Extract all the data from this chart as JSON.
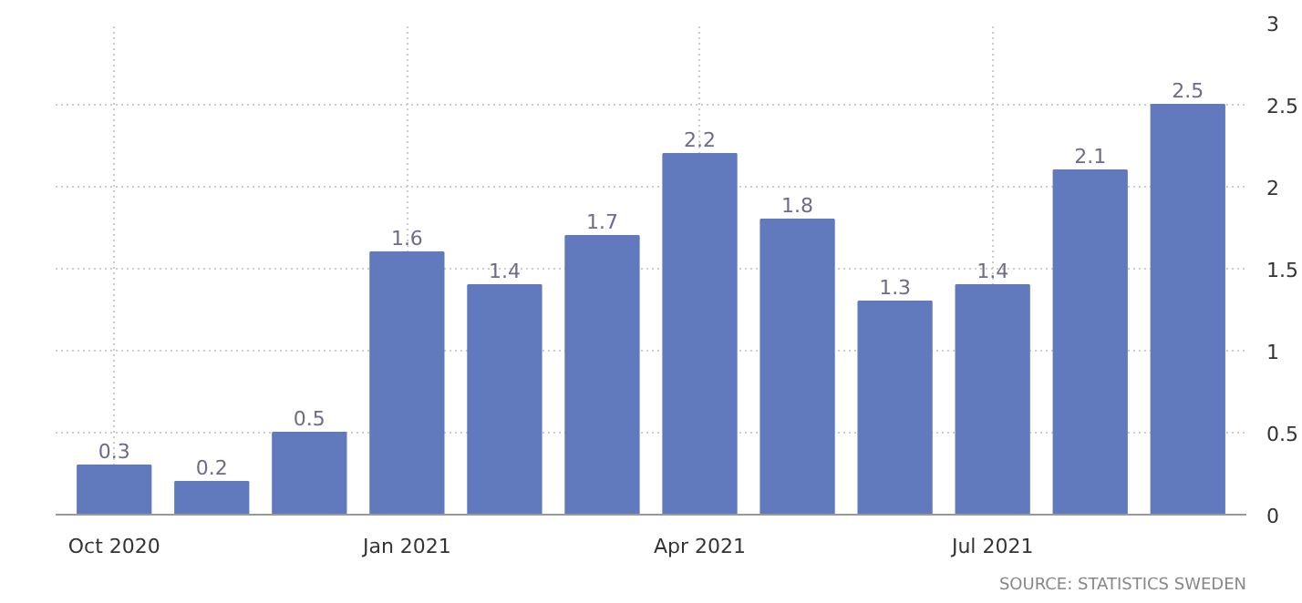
{
  "chart_data": {
    "type": "bar",
    "categories": [
      "Oct 2020",
      null,
      null,
      "Jan 2021",
      null,
      null,
      "Apr 2021",
      null,
      null,
      "Jul 2021",
      null,
      null
    ],
    "values": [
      0.3,
      0.2,
      0.5,
      1.6,
      1.4,
      1.7,
      2.2,
      1.8,
      1.3,
      1.4,
      2.1,
      2.5
    ],
    "color": "#6179bd",
    "ylim": [
      0,
      3
    ],
    "yticks": [
      0,
      0.5,
      1,
      1.5,
      2,
      2.5,
      3
    ],
    "grid": true,
    "data_labels": true,
    "annotations": [
      "SOURCE: STATISTICS SWEDEN"
    ]
  }
}
